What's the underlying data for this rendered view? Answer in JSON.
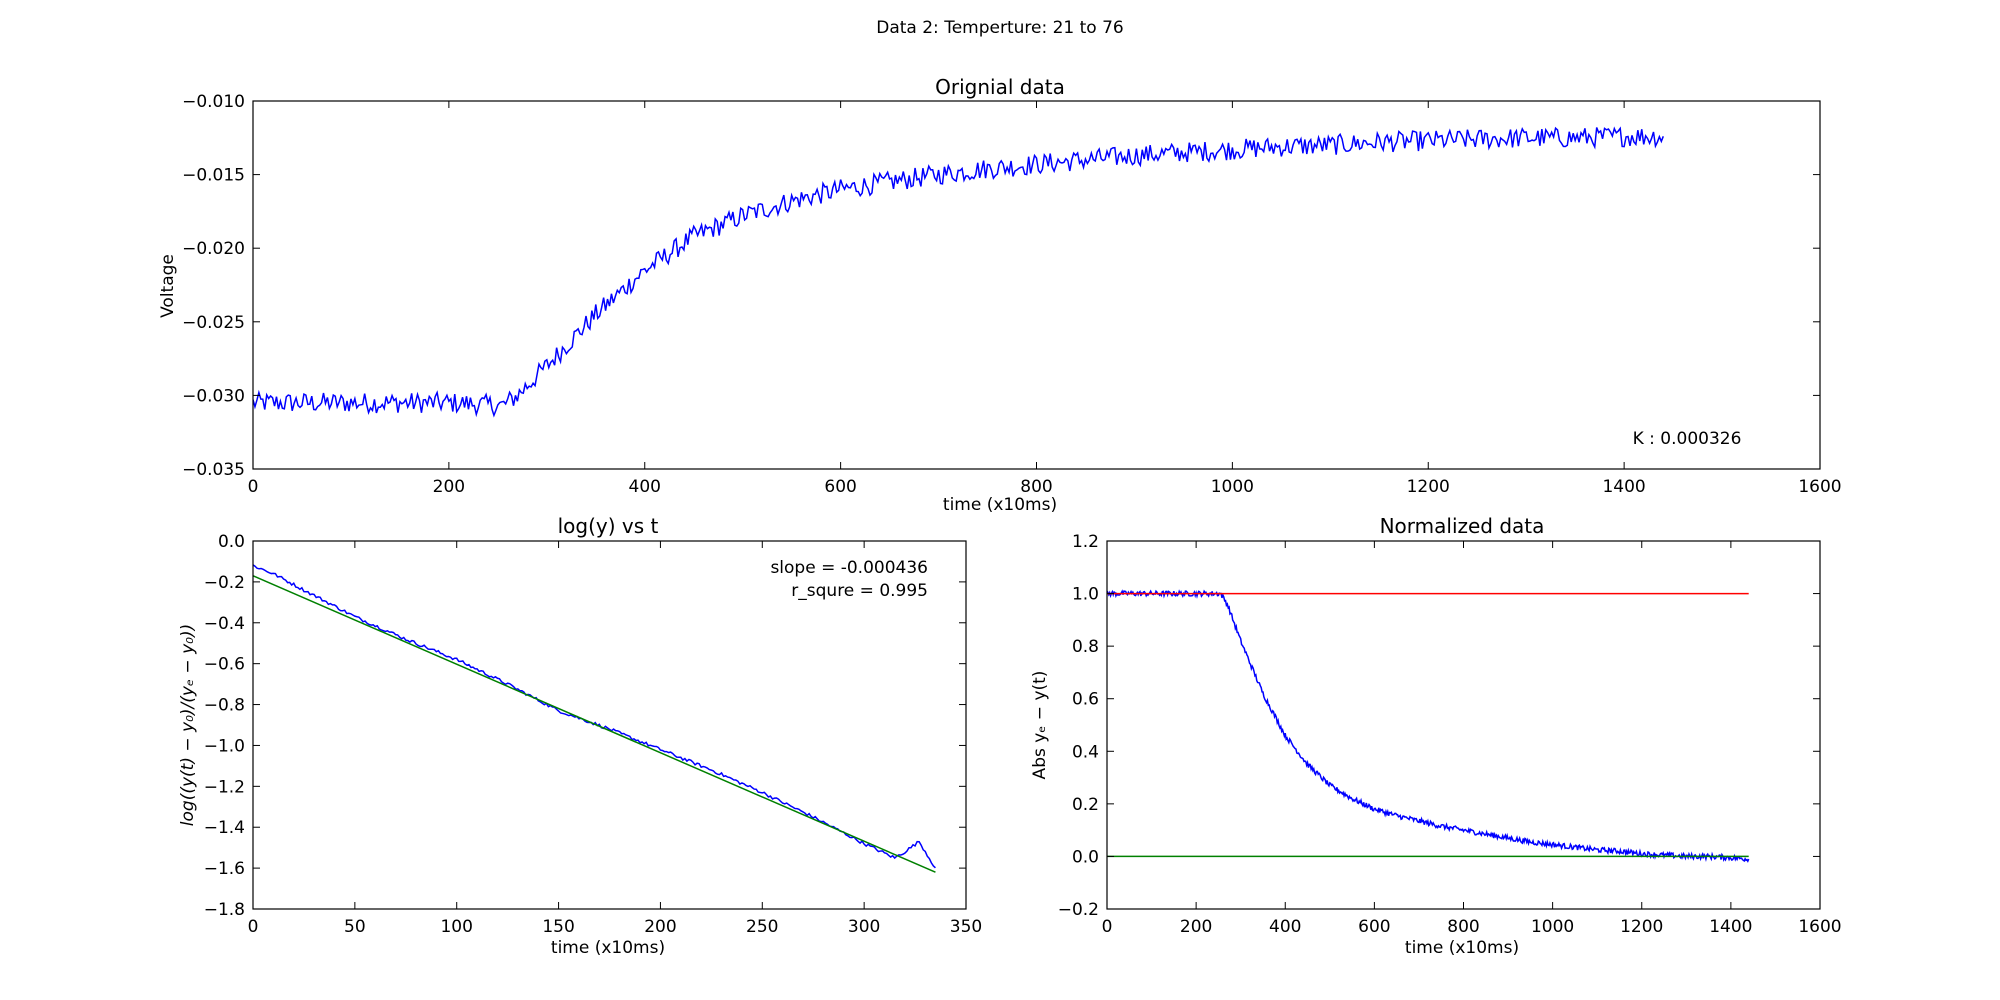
{
  "figure": {
    "suptitle": "Data 2: Temperture: 21 to 76"
  },
  "chart_data": [
    {
      "id": "original",
      "type": "line",
      "title": "Orignial data",
      "xlabel": "time (x10ms)",
      "ylabel": "Voltage",
      "xlim": [
        0,
        1600
      ],
      "ylim": [
        -0.035,
        -0.01
      ],
      "xticks": [
        0,
        200,
        400,
        600,
        800,
        1000,
        1200,
        1400,
        1600
      ],
      "xtick_labels": [
        "0",
        "200",
        "400",
        "600",
        "800",
        "1000",
        "1200",
        "1400",
        "1600"
      ],
      "yticks": [
        -0.035,
        -0.03,
        -0.025,
        -0.02,
        -0.015,
        -0.01
      ],
      "ytick_labels": [
        "−0.035",
        "−0.030",
        "−0.025",
        "−0.020",
        "−0.015",
        "−0.010"
      ],
      "grid": false,
      "annotation": "K : 0.000326",
      "series": [
        {
          "color": "#0000ff",
          "noise": 0.0007,
          "x": [
            0,
            50,
            100,
            150,
            200,
            255,
            270,
            300,
            350,
            400,
            450,
            500,
            550,
            600,
            650,
            700,
            750,
            800,
            850,
            900,
            950,
            1000,
            1050,
            1100,
            1150,
            1200,
            1250,
            1300,
            1350,
            1400,
            1440
          ],
          "y": [
            -0.0305,
            -0.0305,
            -0.0305,
            -0.0305,
            -0.0305,
            -0.0307,
            -0.03,
            -0.028,
            -0.0245,
            -0.0215,
            -0.0192,
            -0.0178,
            -0.0168,
            -0.016,
            -0.0155,
            -0.015,
            -0.0146,
            -0.0143,
            -0.014,
            -0.0137,
            -0.0135,
            -0.0133,
            -0.0131,
            -0.013,
            -0.0128,
            -0.0127,
            -0.0126,
            -0.0125,
            -0.0125,
            -0.0124,
            -0.0124
          ]
        }
      ]
    },
    {
      "id": "logy",
      "type": "line",
      "title": "log(y) vs t",
      "xlabel": "time (x10ms)",
      "ylabel": "log((y(t) − y₀)/(yₑ − y₀))",
      "xlim": [
        0,
        350
      ],
      "ylim": [
        -1.8,
        0.0
      ],
      "xticks": [
        0,
        50,
        100,
        150,
        200,
        250,
        300,
        350
      ],
      "xtick_labels": [
        "0",
        "50",
        "100",
        "150",
        "200",
        "250",
        "300",
        "350"
      ],
      "yticks": [
        -1.8,
        -1.6,
        -1.4,
        -1.2,
        -1.0,
        -0.8,
        -0.6,
        -0.4,
        -0.2,
        0.0
      ],
      "ytick_labels": [
        "−1.8",
        "−1.6",
        "−1.4",
        "−1.2",
        "−1.0",
        "−0.8",
        "−0.6",
        "−0.4",
        "−0.2",
        "0.0"
      ],
      "grid": false,
      "annotations": [
        "slope = -0.000436",
        "r_squre = 0.995"
      ],
      "series": [
        {
          "color": "#0000ff",
          "noise": 0.008,
          "x": [
            0,
            10,
            25,
            50,
            75,
            100,
            125,
            150,
            175,
            200,
            225,
            250,
            275,
            300,
            315,
            320,
            327,
            335
          ],
          "y": [
            -0.12,
            -0.16,
            -0.24,
            -0.37,
            -0.48,
            -0.58,
            -0.7,
            -0.83,
            -0.92,
            -1.02,
            -1.12,
            -1.23,
            -1.35,
            -1.48,
            -1.55,
            -1.52,
            -1.47,
            -1.6
          ]
        },
        {
          "color": "#008000",
          "noise": 0,
          "x": [
            0,
            335
          ],
          "y": [
            -0.17,
            -1.62
          ]
        }
      ]
    },
    {
      "id": "normalized",
      "type": "line",
      "title": "Normalized data",
      "xlabel": "time (x10ms)",
      "ylabel": "Abs yₑ − y(t)",
      "xlim": [
        0,
        1600
      ],
      "ylim": [
        -0.2,
        1.2
      ],
      "xticks": [
        0,
        200,
        400,
        600,
        800,
        1000,
        1200,
        1400,
        1600
      ],
      "xtick_labels": [
        "0",
        "200",
        "400",
        "600",
        "800",
        "1000",
        "1200",
        "1400",
        "1600"
      ],
      "yticks": [
        -0.2,
        0.0,
        0.2,
        0.4,
        0.6,
        0.8,
        1.0,
        1.2
      ],
      "ytick_labels": [
        "−0.2",
        "0.0",
        "0.2",
        "0.4",
        "0.6",
        "0.8",
        "1.0",
        "1.2"
      ],
      "grid": false,
      "series": [
        {
          "color": "#0000ff",
          "noise": 0.01,
          "x": [
            0,
            50,
            100,
            150,
            200,
            255,
            270,
            300,
            350,
            400,
            450,
            500,
            550,
            600,
            650,
            700,
            750,
            800,
            850,
            900,
            950,
            1000,
            1050,
            1100,
            1150,
            1200,
            1250,
            1300,
            1350,
            1400,
            1440
          ],
          "y": [
            1.0,
            1.0,
            1.0,
            1.0,
            1.0,
            1.0,
            0.96,
            0.82,
            0.62,
            0.46,
            0.35,
            0.27,
            0.22,
            0.18,
            0.155,
            0.135,
            0.115,
            0.1,
            0.085,
            0.07,
            0.055,
            0.045,
            0.035,
            0.025,
            0.02,
            0.01,
            0.005,
            0.0,
            0.0,
            -0.005,
            -0.01
          ]
        },
        {
          "color": "#ff0000",
          "noise": 0,
          "x": [
            0,
            1440
          ],
          "y": [
            1.0,
            1.0
          ]
        },
        {
          "color": "#008000",
          "noise": 0,
          "x": [
            0,
            1440
          ],
          "y": [
            0.0,
            0.0
          ]
        }
      ]
    }
  ]
}
